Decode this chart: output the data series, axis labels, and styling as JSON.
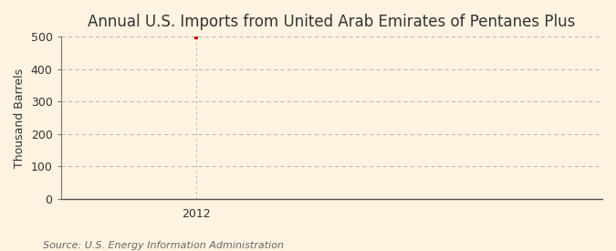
{
  "title": "Annual U.S. Imports from United Arab Emirates of Pentanes Plus",
  "ylabel": "Thousand Barrels",
  "source_text": "Source: U.S. Energy Information Administration",
  "x_data": [
    2012
  ],
  "y_data": [
    497
  ],
  "xlim": [
    2011.4,
    2013.8
  ],
  "ylim": [
    0,
    500
  ],
  "yticks": [
    0,
    100,
    200,
    300,
    400,
    500
  ],
  "xticks": [
    2012
  ],
  "bg_color": "#fdf3e0",
  "plot_bg_color": "#fdf3e0",
  "data_color": "#cc0000",
  "grid_color": "#aaaaaa",
  "left_spine_color": "#777777",
  "bottom_spine_color": "#555555",
  "title_fontsize": 12,
  "label_fontsize": 9,
  "tick_fontsize": 9,
  "source_fontsize": 8
}
